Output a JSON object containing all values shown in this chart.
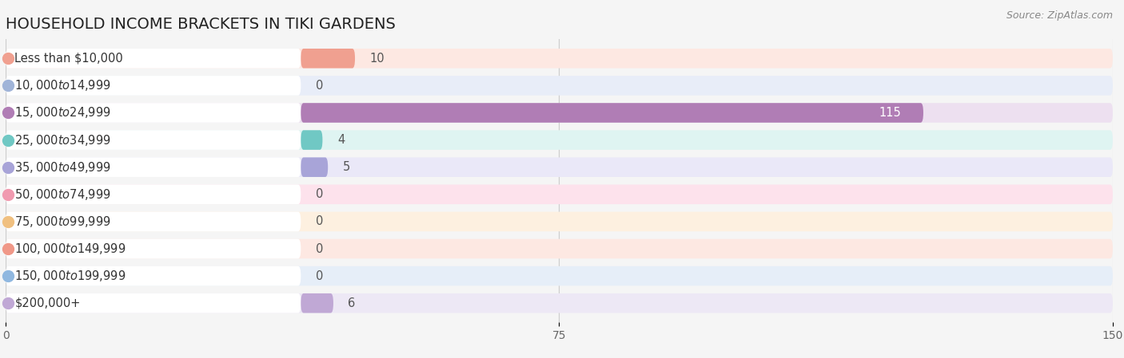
{
  "title": "HOUSEHOLD INCOME BRACKETS IN TIKI GARDENS",
  "source": "Source: ZipAtlas.com",
  "categories": [
    "Less than $10,000",
    "$10,000 to $14,999",
    "$15,000 to $24,999",
    "$25,000 to $34,999",
    "$35,000 to $49,999",
    "$50,000 to $74,999",
    "$75,000 to $99,999",
    "$100,000 to $149,999",
    "$150,000 to $199,999",
    "$200,000+"
  ],
  "values": [
    10,
    0,
    115,
    4,
    5,
    0,
    0,
    0,
    0,
    6
  ],
  "bar_colors": [
    "#f0a090",
    "#a0b4d8",
    "#b07db5",
    "#70c8c4",
    "#a8a4d8",
    "#f09ab0",
    "#f0c080",
    "#f09888",
    "#90b8e0",
    "#c0a8d5"
  ],
  "bar_bg_colors": [
    "#fde8e2",
    "#e8edf8",
    "#ede0f0",
    "#dff4f2",
    "#eae8f8",
    "#fde2ec",
    "#fdf0e0",
    "#fde8e2",
    "#e6eef8",
    "#ede8f5"
  ],
  "dot_colors": [
    "#f0a090",
    "#a0b4d8",
    "#b07db5",
    "#70c8c4",
    "#a8a4d8",
    "#f09ab0",
    "#f0c080",
    "#f09888",
    "#90b8e0",
    "#c0a8d5"
  ],
  "xlim": [
    0,
    150
  ],
  "xticks": [
    0,
    75,
    150
  ],
  "background_color": "#f5f5f5",
  "title_fontsize": 14,
  "label_fontsize": 10.5,
  "tick_fontsize": 10,
  "value_label_color_default": "#555555",
  "value_label_color_inside": "#ffffff"
}
